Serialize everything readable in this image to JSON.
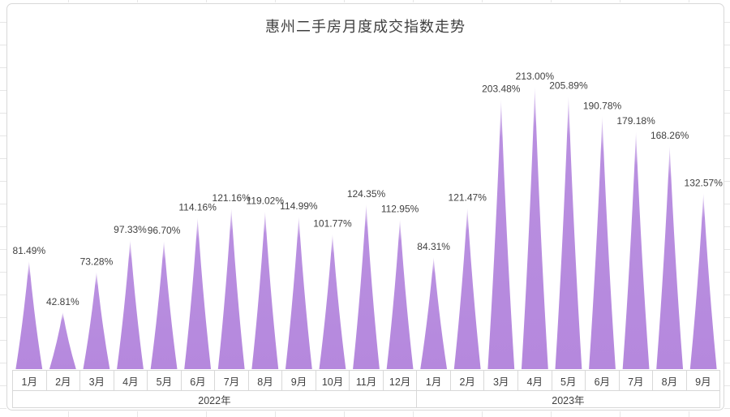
{
  "title": "惠州二手房月度成交指数走势",
  "chart_data": {
    "type": "area",
    "shape": "spike-triangle",
    "categories": [
      "1月",
      "2月",
      "3月",
      "4月",
      "5月",
      "6月",
      "7月",
      "8月",
      "9月",
      "10月",
      "11月",
      "12月",
      "1月",
      "2月",
      "3月",
      "4月",
      "5月",
      "6月",
      "7月",
      "8月",
      "9月"
    ],
    "year_groups": [
      {
        "label": "2022年",
        "span": 12
      },
      {
        "label": "2023年",
        "span": 9
      }
    ],
    "series": [
      {
        "name": "月度成交指数",
        "values": [
          81.49,
          42.81,
          73.28,
          97.33,
          96.7,
          114.16,
          121.16,
          119.02,
          114.99,
          101.77,
          124.35,
          112.95,
          84.31,
          121.47,
          203.48,
          213.0,
          205.89,
          190.78,
          179.18,
          168.26,
          132.57
        ],
        "labels": [
          "81.49%",
          "42.81%",
          "73.28%",
          "97.33%",
          "96.70%",
          "114.16%",
          "121.16%",
          "119.02%",
          "114.99%",
          "101.77%",
          "124.35%",
          "112.95%",
          "84.31%",
          "121.47%",
          "203.48%",
          "213.00%",
          "205.89%",
          "190.78%",
          "179.18%",
          "168.26%",
          "132.57%"
        ]
      }
    ],
    "ylim": [
      0,
      220
    ],
    "value_suffix": "%",
    "grid": false,
    "legend": "none",
    "colors": {
      "spike_fill": "#b588dd",
      "spike_tip": "#f2ebfa",
      "data_label": "#404040",
      "title_text": "#3f3f3f",
      "axis_border": "#d8d8d8"
    }
  }
}
